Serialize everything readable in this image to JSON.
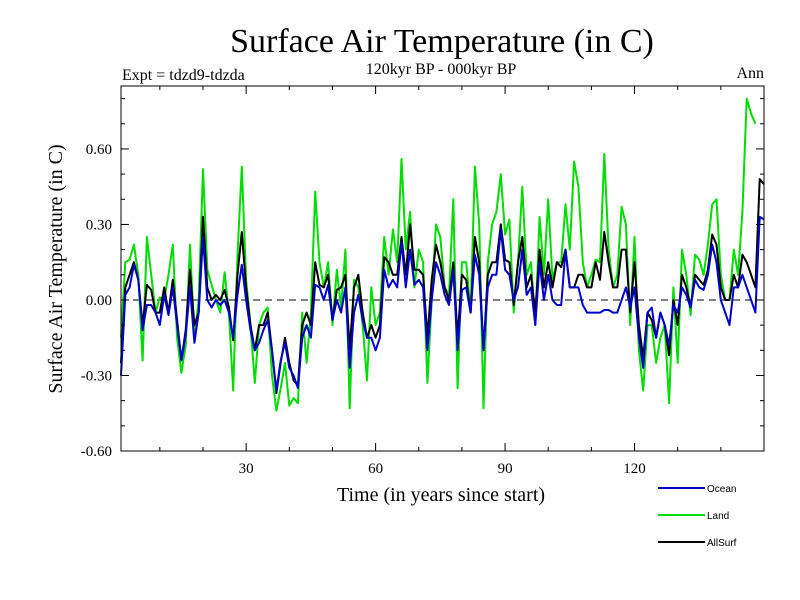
{
  "chart_data": {
    "type": "line",
    "title": "Surface Air Temperature (in C)",
    "subtitle": "120kyr BP - 000kyr BP",
    "left_label": "Expt = tdzd9-tdzda",
    "right_label": "Ann",
    "xlabel": "Time (in years since start)",
    "ylabel": "Surface Air Temperature (in C)",
    "xlim": [
      1,
      150
    ],
    "ylim": [
      -0.6,
      0.85
    ],
    "x_ticks": [
      30,
      60,
      90,
      120
    ],
    "y_ticks": [
      -0.6,
      -0.3,
      0.0,
      0.3,
      0.6
    ],
    "y_tick_labels": [
      "-0.60",
      "-0.30",
      "0.00",
      "0.30",
      "0.60"
    ],
    "reference_line": 0.0,
    "legend_position": "bottom-right",
    "series": [
      {
        "name": "Land",
        "color": "#00dd00",
        "values": [
          -0.15,
          0.15,
          0.16,
          0.22,
          0.1,
          -0.24,
          0.25,
          0.1,
          -0.05,
          0.01,
          0.0,
          0.1,
          0.22,
          -0.15,
          -0.29,
          -0.18,
          0.22,
          -0.15,
          0.0,
          0.52,
          0.12,
          0.06,
          0.0,
          -0.05,
          0.11,
          -0.05,
          -0.36,
          0.18,
          0.53,
          0.08,
          -0.1,
          -0.33,
          -0.1,
          -0.05,
          -0.03,
          -0.3,
          -0.44,
          -0.35,
          -0.25,
          -0.42,
          -0.39,
          -0.41,
          -0.05,
          -0.25,
          -0.05,
          0.43,
          0.15,
          0.05,
          0.15,
          -0.1,
          0.12,
          -0.03,
          0.2,
          -0.43,
          0.08,
          0.05,
          -0.1,
          -0.32,
          0.05,
          -0.1,
          -0.05,
          0.25,
          0.1,
          0.28,
          0.15,
          0.56,
          0.2,
          0.35,
          0.05,
          0.2,
          0.15,
          -0.33,
          0.0,
          0.3,
          0.25,
          0.05,
          0.02,
          0.4,
          -0.35,
          0.15,
          0.15,
          -0.05,
          0.53,
          0.3,
          -0.43,
          0.15,
          0.3,
          0.35,
          0.5,
          0.26,
          0.32,
          -0.05,
          0.15,
          0.45,
          0.1,
          0.15,
          -0.1,
          0.33,
          0.1,
          0.4,
          0.08,
          0.15,
          0.15,
          0.38,
          0.2,
          0.55,
          0.45,
          0.15,
          0.05,
          0.1,
          0.16,
          0.15,
          0.58,
          0.2,
          0.05,
          0.1,
          0.37,
          0.3,
          -0.1,
          0.25,
          -0.2,
          -0.36,
          -0.1,
          -0.1,
          -0.25,
          -0.15,
          -0.1,
          -0.41,
          0.05,
          -0.25,
          0.2,
          0.1,
          -0.06,
          0.18,
          0.16,
          0.1,
          0.22,
          0.38,
          0.4,
          0.1,
          0.0,
          0.0,
          0.2,
          0.1,
          0.35,
          0.8,
          0.74,
          0.7
        ]
      },
      {
        "name": "AllSurf",
        "color": "#000000",
        "values": [
          -0.25,
          0.05,
          0.1,
          0.15,
          0.08,
          -0.1,
          0.06,
          0.04,
          -0.05,
          -0.05,
          0.05,
          -0.05,
          0.08,
          -0.08,
          -0.24,
          -0.12,
          0.12,
          -0.1,
          -0.05,
          0.33,
          0.05,
          0.0,
          0.02,
          0.0,
          0.04,
          -0.03,
          -0.16,
          0.1,
          0.27,
          0.05,
          -0.1,
          -0.2,
          -0.1,
          -0.1,
          -0.05,
          -0.2,
          -0.37,
          -0.25,
          -0.15,
          -0.25,
          -0.32,
          -0.34,
          -0.1,
          -0.05,
          -0.1,
          0.15,
          0.06,
          0.05,
          0.1,
          -0.08,
          0.04,
          0.05,
          0.1,
          -0.2,
          0.05,
          0.1,
          -0.05,
          -0.15,
          -0.1,
          -0.15,
          -0.1,
          0.17,
          0.15,
          0.1,
          0.1,
          0.25,
          0.1,
          0.3,
          0.12,
          0.12,
          0.1,
          -0.15,
          0.08,
          0.22,
          0.15,
          0.05,
          0.0,
          0.15,
          -0.15,
          0.1,
          0.08,
          -0.05,
          0.25,
          0.15,
          -0.2,
          0.1,
          0.15,
          0.15,
          0.3,
          0.16,
          0.15,
          -0.02,
          0.15,
          0.25,
          0.05,
          0.1,
          -0.05,
          0.2,
          0.05,
          0.15,
          0.05,
          0.15,
          0.13,
          0.2,
          0.05,
          0.05,
          0.1,
          0.1,
          0.05,
          0.05,
          0.15,
          0.08,
          0.27,
          0.15,
          0.05,
          0.05,
          0.2,
          0.2,
          -0.05,
          0.15,
          -0.1,
          -0.23,
          -0.05,
          -0.08,
          -0.15,
          -0.05,
          -0.1,
          -0.22,
          0.0,
          -0.1,
          0.1,
          0.05,
          -0.03,
          0.1,
          0.08,
          0.06,
          0.12,
          0.26,
          0.22,
          0.05,
          0.0,
          0.0,
          0.1,
          0.05,
          0.18,
          0.15,
          0.1,
          0.05,
          0.48,
          0.46
        ]
      },
      {
        "name": "Ocean",
        "color": "#0000cc",
        "values": [
          -0.3,
          0.02,
          0.05,
          0.14,
          0.08,
          -0.12,
          -0.02,
          -0.02,
          -0.05,
          -0.1,
          0.02,
          -0.06,
          0.05,
          -0.1,
          -0.24,
          -0.14,
          0.05,
          -0.17,
          -0.05,
          0.25,
          0.0,
          -0.03,
          0.0,
          -0.02,
          0.0,
          -0.05,
          -0.15,
          0.02,
          0.14,
          0.0,
          -0.12,
          -0.2,
          -0.17,
          -0.12,
          -0.08,
          -0.2,
          -0.36,
          -0.24,
          -0.17,
          -0.27,
          -0.3,
          -0.35,
          -0.15,
          -0.1,
          -0.15,
          0.06,
          0.05,
          0.0,
          0.06,
          -0.08,
          0.0,
          -0.05,
          0.05,
          -0.27,
          -0.05,
          0.02,
          -0.08,
          -0.15,
          -0.15,
          -0.2,
          -0.15,
          0.12,
          0.05,
          0.08,
          0.05,
          0.23,
          0.05,
          0.2,
          0.06,
          0.08,
          0.05,
          -0.2,
          0.0,
          0.15,
          0.1,
          0.02,
          -0.02,
          0.12,
          -0.2,
          0.04,
          0.05,
          -0.05,
          0.18,
          0.1,
          -0.2,
          0.05,
          0.1,
          0.1,
          0.28,
          0.12,
          0.1,
          0.0,
          0.05,
          0.2,
          0.02,
          0.05,
          -0.1,
          0.15,
          0.0,
          0.1,
          0.0,
          -0.02,
          -0.02,
          0.2,
          0.05,
          0.05,
          0.05,
          -0.02,
          -0.05,
          -0.05,
          -0.05,
          -0.05,
          -0.04,
          -0.04,
          -0.05,
          -0.05,
          0.0,
          0.05,
          -0.03,
          0.05,
          -0.15,
          -0.27,
          -0.05,
          -0.03,
          -0.15,
          -0.05,
          -0.1,
          -0.18,
          -0.02,
          -0.05,
          0.05,
          0.02,
          -0.03,
          0.08,
          0.05,
          0.04,
          0.1,
          0.22,
          0.15,
          0.0,
          -0.05,
          -0.1,
          0.05,
          0.05,
          0.1,
          0.05,
          0.0,
          -0.05,
          0.33,
          0.32
        ]
      }
    ]
  }
}
